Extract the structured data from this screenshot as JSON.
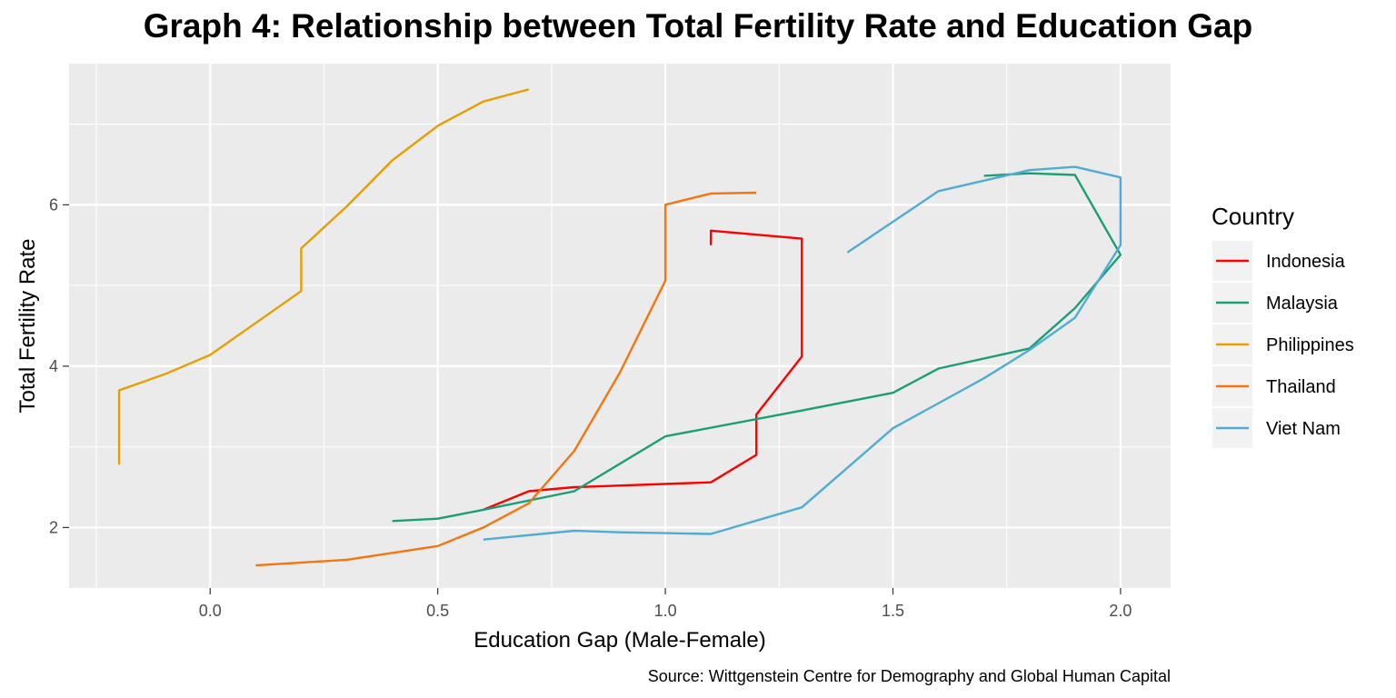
{
  "chart_data": {
    "type": "line",
    "title": "Graph 4: Relationship between Total Fertility Rate and Education Gap",
    "xlabel": "Education Gap (Male-Female)",
    "ylabel": "Total Fertility Rate",
    "caption": "Source: Wittgenstein Centre for Demography and Global Human Capital",
    "xlim": [
      -0.31,
      2.11
    ],
    "ylim": [
      1.25,
      7.75
    ],
    "x_ticks": [
      0.0,
      0.5,
      1.0,
      1.5,
      2.0
    ],
    "x_tick_labels": [
      "0.0",
      "0.5",
      "1.0",
      "1.5",
      "2.0"
    ],
    "y_ticks": [
      2,
      4,
      6
    ],
    "y_tick_labels": [
      "2",
      "4",
      "6"
    ],
    "grid": true,
    "legend_title": "Country",
    "legend_position": "right",
    "series": [
      {
        "name": "Indonesia",
        "color": "#FF0000",
        "points": [
          [
            1.1,
            5.5
          ],
          [
            1.1,
            5.68
          ],
          [
            1.3,
            5.58
          ],
          [
            1.3,
            4.12
          ],
          [
            1.2,
            3.4
          ],
          [
            1.2,
            2.9
          ],
          [
            1.1,
            2.56
          ],
          [
            0.8,
            2.5
          ],
          [
            0.7,
            2.45
          ],
          [
            0.6,
            2.22
          ]
        ]
      },
      {
        "name": "Malaysia",
        "color": "#1B9E77",
        "points": [
          [
            1.7,
            6.36
          ],
          [
            1.8,
            6.39
          ],
          [
            1.9,
            6.37
          ],
          [
            2.0,
            5.38
          ],
          [
            1.9,
            4.72
          ],
          [
            1.8,
            4.22
          ],
          [
            1.6,
            3.97
          ],
          [
            1.5,
            3.67
          ],
          [
            1.3,
            3.45
          ],
          [
            1.0,
            3.13
          ],
          [
            0.8,
            2.45
          ],
          [
            0.6,
            2.22
          ],
          [
            0.5,
            2.11
          ],
          [
            0.4,
            2.08
          ]
        ]
      },
      {
        "name": "Philippines",
        "color": "#E69F00",
        "points": [
          [
            0.7,
            7.43
          ],
          [
            0.6,
            7.28
          ],
          [
            0.5,
            6.98
          ],
          [
            0.4,
            6.55
          ],
          [
            0.3,
            5.98
          ],
          [
            0.2,
            5.46
          ],
          [
            0.2,
            4.93
          ],
          [
            0.0,
            4.14
          ],
          [
            -0.1,
            3.9
          ],
          [
            -0.2,
            3.7
          ],
          [
            -0.2,
            2.78
          ]
        ]
      },
      {
        "name": "Thailand",
        "color": "#F5750E",
        "points": [
          [
            1.2,
            6.15
          ],
          [
            1.1,
            6.14
          ],
          [
            1.0,
            6.0
          ],
          [
            1.0,
            5.06
          ],
          [
            0.9,
            3.92
          ],
          [
            0.8,
            2.95
          ],
          [
            0.7,
            2.3
          ],
          [
            0.6,
            2.0
          ],
          [
            0.5,
            1.77
          ],
          [
            0.3,
            1.6
          ],
          [
            0.1,
            1.53
          ]
        ]
      },
      {
        "name": "Viet Nam",
        "color": "#4FADD2",
        "points": [
          [
            1.4,
            5.41
          ],
          [
            1.6,
            6.17
          ],
          [
            1.8,
            6.43
          ],
          [
            1.9,
            6.47
          ],
          [
            2.0,
            6.34
          ],
          [
            2.0,
            5.5
          ],
          [
            1.9,
            4.6
          ],
          [
            1.8,
            4.2
          ],
          [
            1.7,
            3.85
          ],
          [
            1.5,
            3.23
          ],
          [
            1.3,
            2.25
          ],
          [
            1.1,
            1.92
          ],
          [
            1.0,
            1.93
          ],
          [
            0.9,
            1.94
          ],
          [
            0.8,
            1.96
          ],
          [
            0.6,
            1.85
          ]
        ]
      }
    ]
  }
}
